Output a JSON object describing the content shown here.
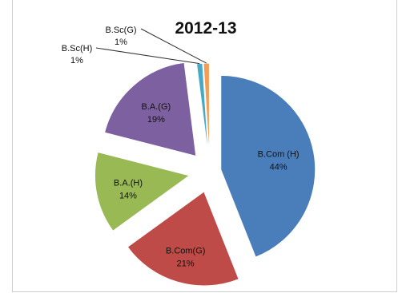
{
  "chart_data": {
    "type": "pie",
    "title": "2012-13",
    "exploded": true,
    "legend": "none",
    "slices": [
      {
        "label": "B.Com (H)",
        "pct_label": "44%",
        "value": 44,
        "color": "#4a7ebb"
      },
      {
        "label": "B.Com(G)",
        "pct_label": "21%",
        "value": 21,
        "color": "#be4b48"
      },
      {
        "label": "B.A.(H)",
        "pct_label": "14%",
        "value": 14,
        "color": "#98b954"
      },
      {
        "label": "B.A.(G)",
        "pct_label": "19%",
        "value": 19,
        "color": "#7d60a0"
      },
      {
        "label": "B.Sc(H)",
        "pct_label": "1%",
        "value": 1,
        "color": "#46aac5"
      },
      {
        "label": "B.Sc(G)",
        "pct_label": "1%",
        "value": 1,
        "color": "#f59d56"
      }
    ]
  }
}
